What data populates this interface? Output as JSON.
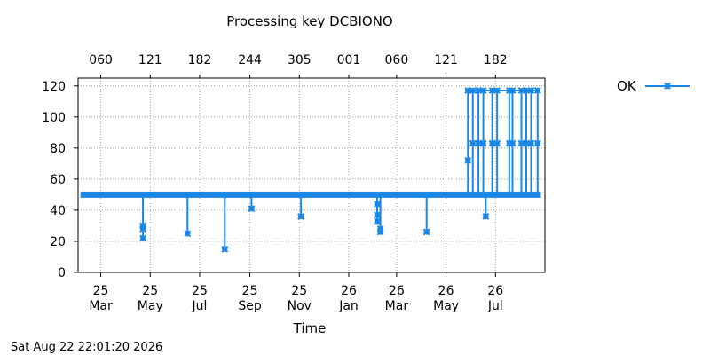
{
  "chart_data": {
    "type": "line",
    "title": "Processing key DCBIONO",
    "xlabel": "Time",
    "ylabel": "",
    "timestamp": "Sat Aug 22 22:01:20 2026",
    "xlim": [
      "2025-02-01",
      "2026-08-31"
    ],
    "ylim": [
      0,
      125
    ],
    "yticks": [
      0,
      20,
      40,
      60,
      80,
      100,
      120
    ],
    "grid": true,
    "legend_position": "top-right",
    "x_ticks_bottom": [
      {
        "date": "2025-03-01",
        "day": "25",
        "month": "Mar"
      },
      {
        "date": "2025-05-01",
        "day": "25",
        "month": "May"
      },
      {
        "date": "2025-07-01",
        "day": "25",
        "month": "Jul"
      },
      {
        "date": "2025-09-01",
        "day": "25",
        "month": "Sep"
      },
      {
        "date": "2025-11-01",
        "day": "25",
        "month": "Nov"
      },
      {
        "date": "2026-01-01",
        "day": "26",
        "month": "Jan"
      },
      {
        "date": "2026-03-01",
        "day": "26",
        "month": "Mar"
      },
      {
        "date": "2026-05-01",
        "day": "26",
        "month": "May"
      },
      {
        "date": "2026-07-01",
        "day": "26",
        "month": "Jul"
      }
    ],
    "x_ticks_top": [
      {
        "date": "2025-03-01",
        "label": "060"
      },
      {
        "date": "2025-05-01",
        "label": "121"
      },
      {
        "date": "2025-07-01",
        "label": "182"
      },
      {
        "date": "2025-09-01",
        "label": "244"
      },
      {
        "date": "2025-11-01",
        "label": "305"
      },
      {
        "date": "2026-01-01",
        "label": "001"
      },
      {
        "date": "2026-03-01",
        "label": "060"
      },
      {
        "date": "2026-05-01",
        "label": "121"
      },
      {
        "date": "2026-07-01",
        "label": "182"
      }
    ],
    "series": [
      {
        "name": "OK",
        "color": "#1a87e6",
        "baseline": 50,
        "x_range": [
          "2025-02-04",
          "2026-08-26"
        ],
        "dips": [
          {
            "date": "2025-04-22",
            "values": [
              30,
              28,
              22
            ]
          },
          {
            "date": "2025-06-16",
            "values": [
              25
            ]
          },
          {
            "date": "2025-08-01",
            "values": [
              15
            ]
          },
          {
            "date": "2025-09-03",
            "values": [
              41
            ]
          },
          {
            "date": "2025-11-03",
            "values": [
              36
            ]
          },
          {
            "date": "2026-02-05",
            "values": [
              44,
              37,
              33
            ]
          },
          {
            "date": "2026-02-09",
            "values": [
              28,
              26
            ]
          },
          {
            "date": "2026-04-07",
            "values": [
              26
            ]
          },
          {
            "date": "2026-06-19",
            "values": [
              36
            ]
          }
        ],
        "peaks": [
          {
            "date": "2026-05-28",
            "values": [
              72,
              117
            ]
          },
          {
            "date": "2026-06-03",
            "values": [
              83,
              117
            ]
          },
          {
            "date": "2026-06-10",
            "values": [
              83,
              117
            ]
          },
          {
            "date": "2026-06-16",
            "values": [
              83,
              117
            ]
          },
          {
            "date": "2026-06-27",
            "values": [
              83,
              117
            ]
          },
          {
            "date": "2026-07-03",
            "values": [
              83,
              117
            ]
          },
          {
            "date": "2026-07-18",
            "values": [
              83,
              117
            ]
          },
          {
            "date": "2026-07-22",
            "values": [
              83,
              117
            ]
          },
          {
            "date": "2026-08-02",
            "values": [
              83,
              117
            ]
          },
          {
            "date": "2026-08-08",
            "values": [
              83,
              117
            ]
          },
          {
            "date": "2026-08-14",
            "values": [
              83,
              117
            ]
          },
          {
            "date": "2026-08-22",
            "values": [
              83,
              117
            ]
          }
        ]
      }
    ]
  }
}
